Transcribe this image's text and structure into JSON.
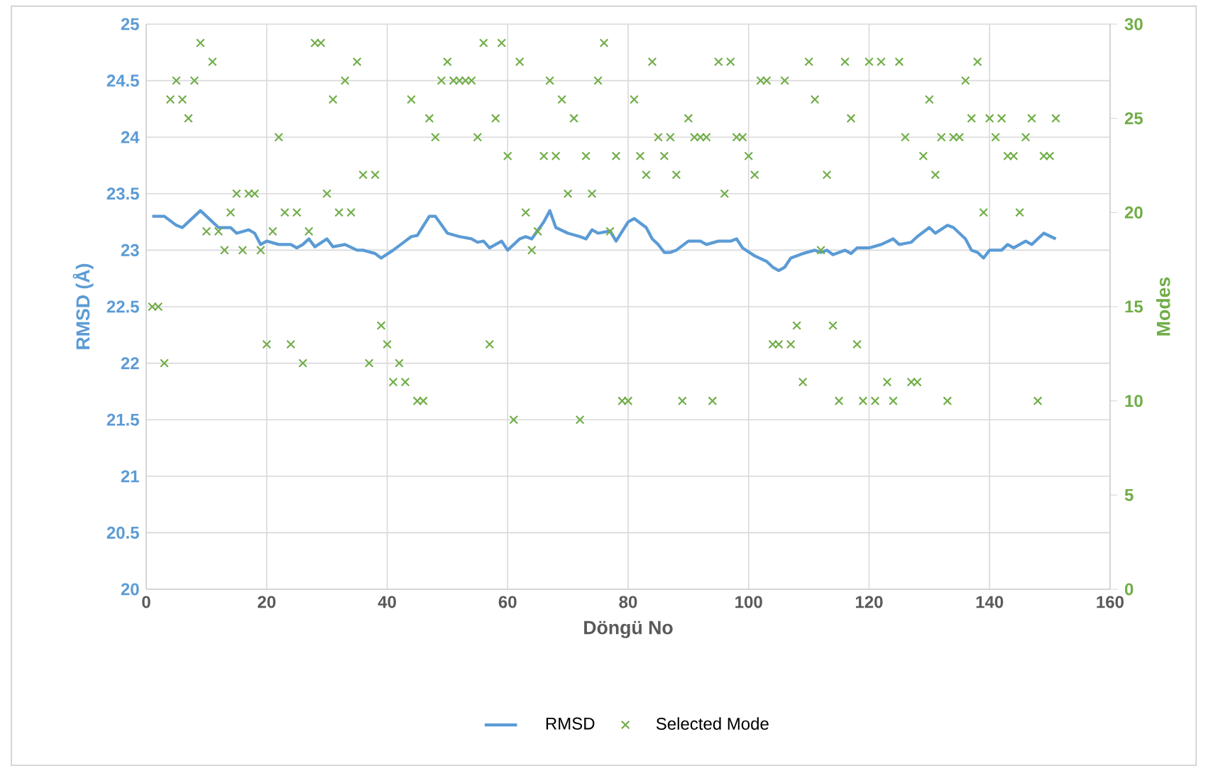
{
  "chart_data": {
    "type": "line",
    "xlabel": "Döngü No",
    "ylabel": "RMSD (Å)",
    "y2label": "Modes",
    "xlim": [
      0,
      160
    ],
    "xticks": [
      0,
      20,
      40,
      60,
      80,
      100,
      120,
      140,
      160
    ],
    "ylim": [
      20,
      25
    ],
    "yticks": [
      20,
      20.5,
      21,
      21.5,
      22,
      22.5,
      23,
      23.5,
      24,
      24.5,
      25
    ],
    "y2lim": [
      0,
      30
    ],
    "y2ticks": [
      0,
      5,
      10,
      15,
      20,
      25,
      30
    ],
    "grid": true,
    "legend": "bottom",
    "series": [
      {
        "name": "RMSD",
        "color": "#5b9bd5",
        "marker": "none",
        "line_style": "solid",
        "x": [
          1,
          3,
          5,
          6,
          8,
          9,
          10,
          12,
          14,
          15,
          17,
          18,
          19,
          20,
          22,
          24,
          25,
          26,
          27,
          28,
          30,
          31,
          33,
          35,
          36,
          38,
          39,
          41,
          43,
          44,
          45,
          47,
          48,
          50,
          52,
          54,
          55,
          56,
          57,
          59,
          60,
          62,
          63,
          64,
          66,
          67,
          68,
          70,
          72,
          73,
          74,
          75,
          77,
          78,
          80,
          81,
          83,
          84,
          85,
          86,
          87,
          88,
          90,
          92,
          93,
          95,
          97,
          98,
          99,
          101,
          103,
          104,
          105,
          106,
          107,
          109,
          111,
          112,
          113,
          114,
          116,
          117,
          118,
          120,
          122,
          124,
          125,
          127,
          128,
          130,
          131,
          133,
          134,
          136,
          137,
          138,
          139,
          140,
          142,
          143,
          144,
          146,
          147,
          149,
          151
        ],
        "values": [
          23.3,
          23.3,
          23.22,
          23.2,
          23.3,
          23.35,
          23.3,
          23.2,
          23.2,
          23.15,
          23.18,
          23.15,
          23.05,
          23.08,
          23.05,
          23.05,
          23.02,
          23.05,
          23.1,
          23.03,
          23.1,
          23.03,
          23.05,
          23.0,
          23.0,
          22.97,
          22.93,
          23.0,
          23.08,
          23.12,
          23.13,
          23.3,
          23.3,
          23.15,
          23.12,
          23.1,
          23.07,
          23.08,
          23.02,
          23.08,
          23.0,
          23.1,
          23.12,
          23.1,
          23.25,
          23.35,
          23.2,
          23.15,
          23.12,
          23.1,
          23.18,
          23.15,
          23.17,
          23.08,
          23.25,
          23.28,
          23.2,
          23.1,
          23.05,
          22.98,
          22.98,
          23.0,
          23.08,
          23.08,
          23.05,
          23.08,
          23.08,
          23.1,
          23.02,
          22.95,
          22.9,
          22.85,
          22.82,
          22.85,
          22.93,
          22.97,
          23.0,
          22.98,
          23.0,
          22.96,
          23.0,
          22.97,
          23.02,
          23.02,
          23.05,
          23.1,
          23.05,
          23.07,
          23.12,
          23.2,
          23.15,
          23.22,
          23.2,
          23.1,
          23.0,
          22.98,
          22.93,
          23.0,
          23.0,
          23.05,
          23.02,
          23.08,
          23.05,
          23.15,
          23.1
        ]
      },
      {
        "name": "Selected Mode",
        "type": "scatter",
        "axis": "y2",
        "color": "#70ad47",
        "marker": "cross",
        "x": [
          1,
          2,
          3,
          4,
          5,
          6,
          7,
          8,
          9,
          10,
          11,
          12,
          13,
          14,
          15,
          16,
          17,
          18,
          19,
          20,
          21,
          22,
          23,
          24,
          25,
          26,
          27,
          28,
          29,
          30,
          31,
          32,
          33,
          34,
          35,
          36,
          37,
          38,
          39,
          40,
          41,
          42,
          43,
          44,
          45,
          46,
          47,
          48,
          49,
          50,
          51,
          52,
          53,
          54,
          55,
          56,
          57,
          58,
          59,
          60,
          61,
          62,
          63,
          64,
          65,
          66,
          67,
          68,
          69,
          70,
          71,
          72,
          73,
          74,
          75,
          76,
          77,
          78,
          79,
          80,
          81,
          82,
          83,
          84,
          85,
          86,
          87,
          88,
          89,
          90,
          91,
          92,
          93,
          94,
          95,
          96,
          97,
          98,
          99,
          100,
          101,
          102,
          103,
          104,
          105,
          106,
          107,
          108,
          109,
          110,
          111,
          112,
          113,
          114,
          115,
          116,
          117,
          118,
          119,
          120,
          121,
          122,
          123,
          124,
          125,
          126,
          127,
          128,
          129,
          130,
          131,
          132,
          133,
          134,
          135,
          136,
          137,
          138,
          139,
          140,
          141,
          142,
          143,
          144,
          145,
          146,
          147,
          148,
          149,
          150,
          151
        ],
        "values": [
          15,
          15,
          12,
          26,
          27,
          26,
          25,
          27,
          29,
          19,
          28,
          19,
          18,
          20,
          21,
          18,
          21,
          21,
          18,
          13,
          19,
          24,
          20,
          13,
          20,
          12,
          19,
          29,
          29,
          21,
          26,
          20,
          27,
          20,
          28,
          22,
          12,
          22,
          14,
          13,
          11,
          12,
          11,
          26,
          10,
          10,
          25,
          24,
          27,
          28,
          27,
          27,
          27,
          27,
          24,
          29,
          13,
          25,
          29,
          23,
          9,
          28,
          20,
          18,
          19,
          23,
          27,
          23,
          26,
          21,
          25,
          9,
          23,
          21,
          27,
          29,
          19,
          23,
          10,
          10,
          26,
          23,
          22,
          28,
          24,
          23,
          24,
          22,
          10,
          25,
          24,
          24,
          24,
          10,
          28,
          21,
          28,
          24,
          24,
          23,
          22,
          27,
          27,
          13,
          13,
          27,
          13,
          14,
          11,
          28,
          26,
          18,
          22,
          14,
          10,
          28,
          25,
          13,
          10,
          28,
          10,
          28,
          11,
          10,
          28,
          24,
          11,
          11,
          23,
          26,
          22,
          24,
          10,
          24,
          24,
          27,
          25,
          28,
          20,
          25,
          24,
          25,
          23,
          23,
          20,
          24,
          25,
          10,
          23,
          23,
          25
        ]
      }
    ]
  }
}
